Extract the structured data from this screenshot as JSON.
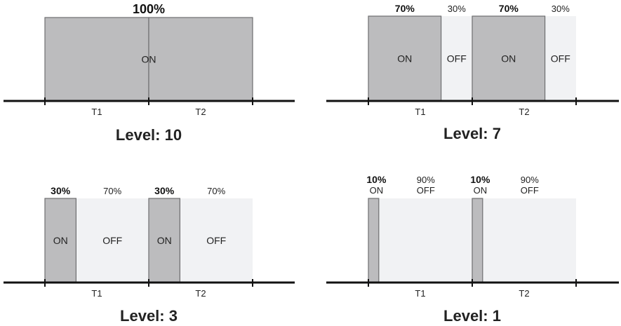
{
  "panels": [
    {
      "id": "level-10",
      "level_label": "Level: 10",
      "on_percent": 100,
      "periods": [
        "T1",
        "T2"
      ],
      "on_pct_text": "100%",
      "off_pct_text": "",
      "on_text": "ON",
      "off_text": "",
      "label_style": "single-top"
    },
    {
      "id": "level-7",
      "level_label": "Level: 7",
      "on_percent": 70,
      "periods": [
        "T1",
        "T2"
      ],
      "on_pct_text": "70%",
      "off_pct_text": "30%",
      "on_text": "ON",
      "off_text": "OFF",
      "label_style": "inside"
    },
    {
      "id": "level-3",
      "level_label": "Level: 3",
      "on_percent": 30,
      "periods": [
        "T1",
        "T2"
      ],
      "on_pct_text": "30%",
      "off_pct_text": "70%",
      "on_text": "ON",
      "off_text": "OFF",
      "label_style": "inside"
    },
    {
      "id": "level-1",
      "level_label": "Level: 1",
      "on_percent": 10,
      "periods": [
        "T1",
        "T2"
      ],
      "on_pct_text": "10%",
      "off_pct_text": "90%",
      "on_text": "ON",
      "off_text": "OFF",
      "label_style": "stacked-top"
    }
  ],
  "colors": {
    "on_fill": "#bcbcbe",
    "on_stroke": "#6e6e70",
    "off_fill": "#f1f2f4",
    "axis": "#111111"
  }
}
